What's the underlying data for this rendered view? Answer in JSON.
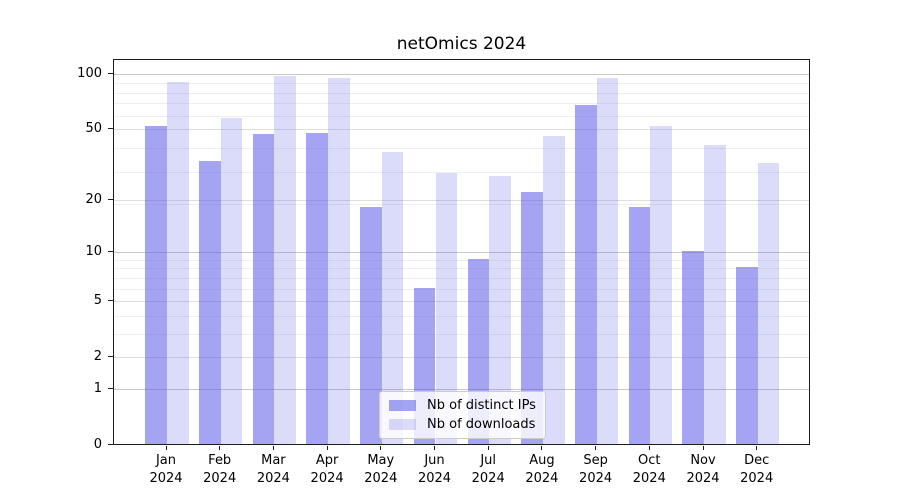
{
  "title": "netOmics 2024",
  "colors": {
    "bar_distinct_ips": "rgba(93,93,232,0.56)",
    "bar_downloads": "rgba(93,93,232,0.22)",
    "spine": "#1c1c1c",
    "grid_emphasis": "#c8c8c8",
    "grid_major": "#dedede",
    "grid_minor": "#efefef",
    "legend_bg": "rgba(255,255,255,0.8)",
    "legend_border": "#cccccc"
  },
  "chart_data": {
    "type": "bar",
    "title": "netOmics 2024",
    "xlabel": "",
    "ylabel": "",
    "yscale": "log1p",
    "ylim": [
      0,
      120.6
    ],
    "yticks": [
      0,
      1,
      2,
      5,
      10,
      20,
      50,
      100
    ],
    "grid": {
      "emphasis": [
        1,
        10,
        100
      ],
      "major": [
        2,
        5,
        20,
        50
      ],
      "minor": [
        3,
        4,
        6,
        7,
        8,
        9,
        19,
        29,
        39,
        59,
        69,
        79,
        89
      ]
    },
    "categories": [
      "Jan",
      "Feb",
      "Mar",
      "Apr",
      "May",
      "Jun",
      "Jul",
      "Aug",
      "Sep",
      "Oct",
      "Nov",
      "Dec"
    ],
    "x_year": "2024",
    "legend_position": "lower center",
    "series": [
      {
        "name": "Nb of distinct IPs",
        "values": [
          51,
          33,
          46,
          47,
          18,
          6,
          9,
          22,
          67,
          18,
          10,
          8
        ]
      },
      {
        "name": "Nb of downloads",
        "values": [
          89,
          57,
          96,
          94,
          37,
          28,
          27,
          45,
          94,
          51,
          40,
          32
        ]
      }
    ]
  }
}
